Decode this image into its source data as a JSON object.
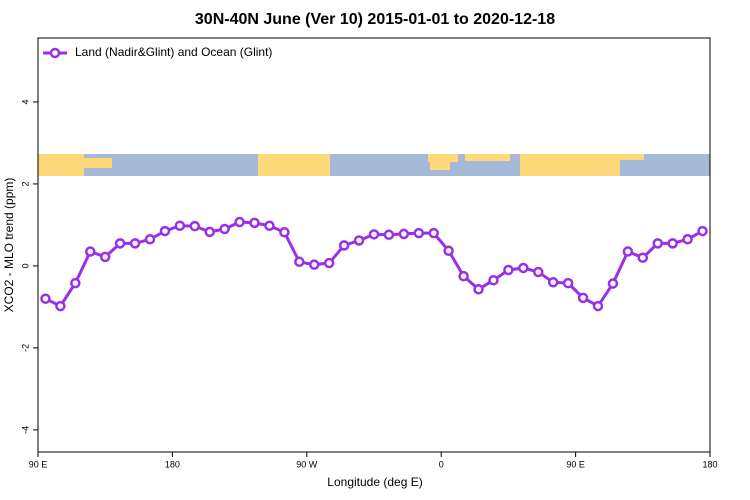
{
  "chart_data": {
    "type": "line",
    "title": "30N-40N June (Ver 10)   2015-01-01 to 2020-12-18",
    "xlabel": "Longitude (deg E)",
    "ylabel": "XCO2 - MLO trend (ppm)",
    "x": [
      95,
      105,
      115,
      125,
      135,
      145,
      155,
      165,
      175,
      185,
      195,
      205,
      215,
      225,
      235,
      245,
      255,
      265,
      275,
      285,
      295,
      305,
      315,
      325,
      335,
      345,
      355,
      365,
      375,
      385,
      395,
      405,
      415,
      425,
      435,
      445,
      455,
      465,
      475,
      485,
      495,
      505,
      515,
      525,
      535
    ],
    "series": [
      {
        "name": "Land (Nadir&Glint) and Ocean (Glint)",
        "color": "#9b2fe6",
        "values": [
          -0.8,
          -0.98,
          -0.42,
          0.35,
          0.22,
          0.55,
          0.55,
          0.65,
          0.85,
          0.98,
          0.97,
          0.83,
          0.9,
          1.07,
          1.05,
          0.98,
          0.82,
          0.1,
          0.03,
          0.07,
          0.5,
          0.62,
          0.77,
          0.76,
          0.78,
          0.8,
          0.8,
          0.37,
          -0.25,
          -0.57,
          -0.35,
          -0.1,
          -0.05,
          -0.15,
          -0.4,
          -0.42,
          -0.78,
          -0.98,
          -0.43,
          0.35,
          0.2,
          0.55,
          0.55,
          0.65,
          0.85
        ]
      }
    ],
    "xlim": [
      90,
      540
    ],
    "xticks": [
      {
        "value": 90,
        "label": "90 E"
      },
      {
        "value": 180,
        "label": "180"
      },
      {
        "value": 270,
        "label": "90 W"
      },
      {
        "value": 360,
        "label": "0"
      },
      {
        "value": 450,
        "label": "90 E"
      },
      {
        "value": 540,
        "label": "180"
      }
    ],
    "ylim": [
      -4.54,
      5.56
    ],
    "yticks": [
      -4,
      -2,
      0,
      2,
      4
    ],
    "legend": "top-left"
  }
}
